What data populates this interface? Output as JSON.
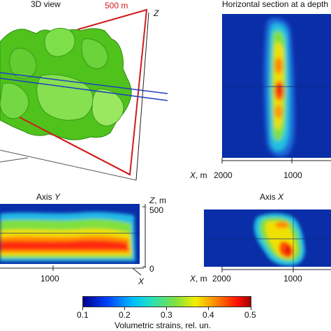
{
  "panels": {
    "view3d": {
      "title": "3D view",
      "length_label": "500 m",
      "z_axis": "Z"
    },
    "horizontal": {
      "title": "Horizontal section at a depth",
      "x_axis": "X, m",
      "ticks": [
        "2000",
        "1000"
      ]
    },
    "axis_y": {
      "title_prefix": "Axis ",
      "title_var": "Y",
      "z_label": "Z, m",
      "z_ticks": [
        "500",
        "0"
      ],
      "x_tick": "1000",
      "x_axis": "X"
    },
    "axis_x": {
      "title_prefix": "Axis ",
      "title_var": "X",
      "x_axis": "X, m",
      "ticks": [
        "2000",
        "1000"
      ]
    }
  },
  "colorbar": {
    "label": "Volumetric strains, rel. un.",
    "ticks": [
      "0.1",
      "0.2",
      "0.3",
      "0.4",
      "0.5"
    ]
  },
  "colors": {
    "frame_red": "#d11a1a",
    "field_blue": "#0a2fb0",
    "body_green": "#5fd020"
  }
}
